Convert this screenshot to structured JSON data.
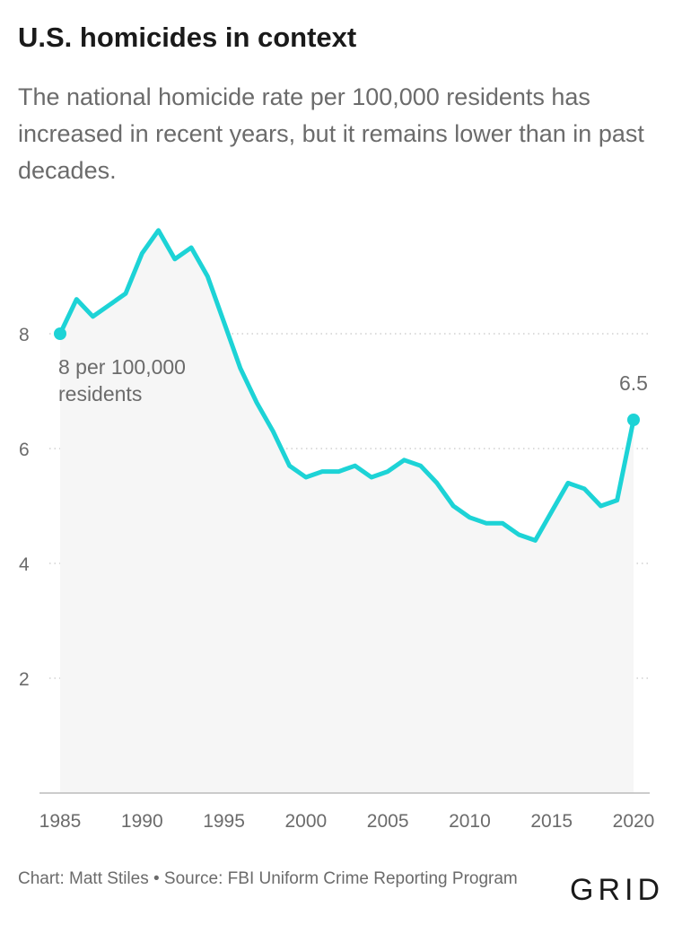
{
  "header": {
    "title": "U.S. homicides in context",
    "subtitle": "The national homicide rate per 100,000 residents has increased in recent years, but it remains lower than in past decades."
  },
  "footer": {
    "credit": "Chart: Matt Stiles • Source: FBI Uniform Crime Reporting Program",
    "logo": "GRID"
  },
  "colors": {
    "line": "#1dd3d6",
    "area": "#f6f6f6",
    "grid": "#d0d0d0",
    "axis": "#bcbcbc"
  },
  "chart_data": {
    "type": "area",
    "title": "",
    "xlabel": "",
    "ylabel": "",
    "x": [
      1985,
      1986,
      1987,
      1988,
      1989,
      1990,
      1991,
      1992,
      1993,
      1994,
      1995,
      1996,
      1997,
      1998,
      1999,
      2000,
      2001,
      2002,
      2003,
      2004,
      2005,
      2006,
      2007,
      2008,
      2009,
      2010,
      2011,
      2012,
      2013,
      2014,
      2015,
      2016,
      2017,
      2018,
      2019,
      2020
    ],
    "series": [
      {
        "name": "",
        "values": [
          8.0,
          8.6,
          8.3,
          8.5,
          8.7,
          9.4,
          9.8,
          9.3,
          9.5,
          9.0,
          8.2,
          7.4,
          6.8,
          6.3,
          5.7,
          5.5,
          5.6,
          5.6,
          5.7,
          5.5,
          5.6,
          5.8,
          5.7,
          5.4,
          5.0,
          4.8,
          4.7,
          4.7,
          4.5,
          4.4,
          4.9,
          5.4,
          5.3,
          5.0,
          5.1,
          6.5
        ]
      }
    ],
    "xlim": [
      1985,
      2020
    ],
    "ylim": [
      0,
      10
    ],
    "x_ticks": [
      1985,
      1990,
      1995,
      2000,
      2005,
      2010,
      2015,
      2020
    ],
    "y_ticks": [
      2,
      4,
      6,
      8
    ],
    "grid": "horizontal dotted",
    "legend": "none",
    "annotations": [
      {
        "x": 1985,
        "y": 8.0,
        "text": [
          "8 per 100,000",
          "residents"
        ],
        "placement": "below-right"
      },
      {
        "x": 2020,
        "y": 6.5,
        "text": [
          "6.5"
        ],
        "placement": "above"
      }
    ]
  }
}
